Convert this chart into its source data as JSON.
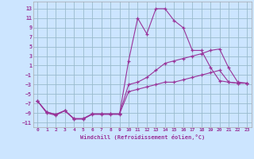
{
  "background_color": "#cce5ff",
  "grid_color": "#99bbcc",
  "line_color": "#993399",
  "marker": "+",
  "xlabel": "Windchill (Refroidissement éolien,°C)",
  "xlim": [
    -0.5,
    23.5
  ],
  "ylim": [
    -12,
    14.5
  ],
  "yticks": [
    -11,
    -9,
    -7,
    -5,
    -3,
    -1,
    1,
    3,
    5,
    7,
    9,
    11,
    13
  ],
  "xticks": [
    0,
    1,
    2,
    3,
    4,
    5,
    6,
    7,
    8,
    9,
    10,
    11,
    12,
    13,
    14,
    15,
    16,
    17,
    18,
    19,
    20,
    21,
    22,
    23
  ],
  "curves": [
    {
      "x": [
        0,
        1,
        2,
        3,
        4,
        5,
        6,
        7,
        8,
        9,
        10,
        11,
        12,
        13,
        14,
        15,
        16,
        17,
        18,
        19,
        20,
        21,
        22,
        23
      ],
      "y": [
        -6.5,
        -9.0,
        -9.5,
        -8.5,
        -10.3,
        -10.3,
        -9.3,
        -9.3,
        -9.3,
        -9.3,
        2.0,
        11.0,
        7.7,
        13.0,
        13.0,
        10.5,
        9.0,
        4.2,
        4.2,
        0.6,
        -2.2,
        -2.5,
        -2.7,
        -2.7
      ]
    },
    {
      "x": [
        0,
        1,
        2,
        3,
        4,
        5,
        6,
        7,
        8,
        9,
        10,
        11,
        12,
        13,
        14,
        15,
        16,
        17,
        18,
        19,
        20,
        21,
        22,
        23
      ],
      "y": [
        -6.5,
        -8.8,
        -9.3,
        -8.5,
        -10.2,
        -10.2,
        -9.2,
        -9.2,
        -9.2,
        -9.2,
        -3.0,
        -2.5,
        -1.5,
        0.0,
        1.5,
        2.0,
        2.5,
        3.0,
        3.5,
        4.2,
        4.5,
        0.5,
        -2.5,
        -2.7
      ]
    },
    {
      "x": [
        0,
        1,
        2,
        3,
        4,
        5,
        6,
        7,
        8,
        9,
        10,
        11,
        12,
        13,
        14,
        15,
        16,
        17,
        18,
        19,
        20,
        21,
        22,
        23
      ],
      "y": [
        -6.5,
        -8.8,
        -9.3,
        -8.5,
        -10.2,
        -10.2,
        -9.2,
        -9.2,
        -9.2,
        -9.2,
        -4.5,
        -4.0,
        -3.5,
        -3.0,
        -2.5,
        -2.5,
        -2.0,
        -1.5,
        -1.0,
        -0.5,
        0.0,
        -2.5,
        -2.7,
        -2.7
      ]
    }
  ]
}
